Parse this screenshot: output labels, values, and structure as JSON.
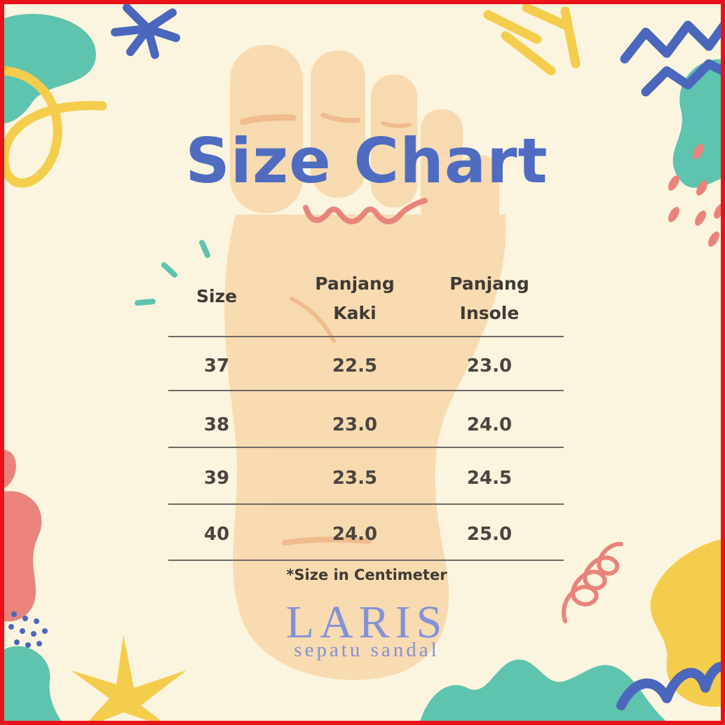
{
  "title": "Size Chart",
  "table": {
    "headers": [
      "Size",
      "Panjang\nKaki",
      "Panjang\nInsole"
    ],
    "rows": [
      [
        "37",
        "22.5",
        "23.0"
      ],
      [
        "38",
        "23.0",
        "24.0"
      ],
      [
        "39",
        "23.5",
        "24.5"
      ],
      [
        "40",
        "24.0",
        "25.0"
      ]
    ]
  },
  "note": "*Size in Centimeter",
  "logo": {
    "name": "LARIS",
    "tagline": "sepatu sandal"
  },
  "colors": {
    "border": "#e8121a",
    "background": "#fbf4de",
    "title": "#4f6cc0",
    "foot": "#f8d9ae",
    "teal": "#5ec4ad",
    "yellow": "#f5cd4d",
    "blue": "#4a67bd",
    "coral": "#e8847c",
    "logo": "#8192d6"
  }
}
